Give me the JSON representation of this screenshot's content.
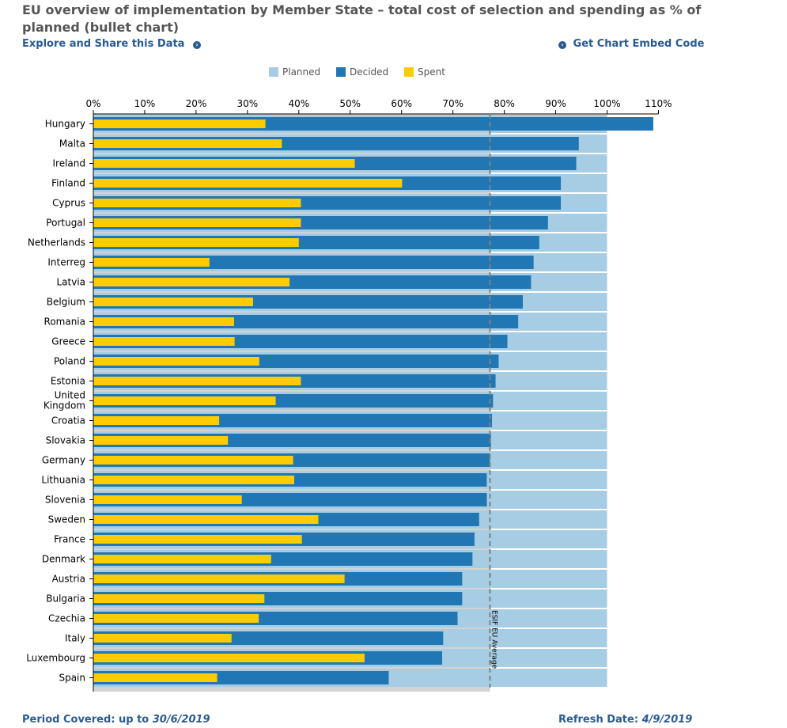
{
  "header": {
    "title_line1": "EU overview of implementation by Member State – total cost of selection and spending as % of",
    "title_line2": "planned (bullet chart)",
    "explore_link": "Explore and Share this Data",
    "embed_link": "Get Chart Embed Code",
    "explore_icon": "chevron-right-circle-icon",
    "embed_icon": "chevron-left-circle-icon"
  },
  "footer": {
    "period_label": "Period Covered: up to",
    "period_value": "30/6/2019",
    "refresh_label": "Refresh Date:",
    "refresh_value": "4/9/2019"
  },
  "colors": {
    "planned": "#a6cde3",
    "decided": "#2176b4",
    "spent": "#fdcc00",
    "eu_average_band": "#d3d3d3",
    "eu_average_line": "#808080",
    "link": "#2a5b91"
  },
  "chart_data": {
    "type": "bar",
    "orientation": "horizontal",
    "subtype": "bullet",
    "title": "EU overview of implementation by Member State – total cost of selection and spending as % of planned (bullet chart)",
    "legend": [
      "Planned",
      "Decided",
      "Spent"
    ],
    "legend_position": "top",
    "xlim": [
      0,
      110
    ],
    "xticks": [
      "0%",
      "10%",
      "20%",
      "30%",
      "40%",
      "50%",
      "60%",
      "70%",
      "80%",
      "90%",
      "100%",
      "110%"
    ],
    "reference_line": {
      "label": "ESIF EU Average",
      "value": 77.2
    },
    "categories": [
      "Hungary",
      "Malta",
      "Ireland",
      "Finland",
      "Cyprus",
      "Portugal",
      "Netherlands",
      "Interreg",
      "Latvia",
      "Belgium",
      "Romania",
      "Greece",
      "Poland",
      "Estonia",
      "United Kingdom",
      "Croatia",
      "Slovakia",
      "Germany",
      "Lithuania",
      "Slovenia",
      "Sweden",
      "France",
      "Denmark",
      "Austria",
      "Bulgaria",
      "Czechia",
      "Italy",
      "Luxembourg",
      "Spain"
    ],
    "category_label_lines": [
      [
        "Hungary"
      ],
      [
        "Malta"
      ],
      [
        "Ireland"
      ],
      [
        "Finland"
      ],
      [
        "Cyprus"
      ],
      [
        "Portugal"
      ],
      [
        "Netherlands"
      ],
      [
        "Interreg"
      ],
      [
        "Latvia"
      ],
      [
        "Belgium"
      ],
      [
        "Romania"
      ],
      [
        "Greece"
      ],
      [
        "Poland"
      ],
      [
        "Estonia"
      ],
      [
        "United",
        "Kingdom"
      ],
      [
        "Croatia"
      ],
      [
        "Slovakia"
      ],
      [
        "Germany"
      ],
      [
        "Lithuania"
      ],
      [
        "Slovenia"
      ],
      [
        "Sweden"
      ],
      [
        "France"
      ],
      [
        "Denmark"
      ],
      [
        "Austria"
      ],
      [
        "Bulgaria"
      ],
      [
        "Czechia"
      ],
      [
        "Italy"
      ],
      [
        "Luxembourg"
      ],
      [
        "Spain"
      ]
    ],
    "series": [
      {
        "name": "Planned",
        "values": [
          100,
          100,
          100,
          100,
          100,
          100,
          100,
          100,
          100,
          100,
          100,
          100,
          100,
          100,
          100,
          100,
          100,
          100,
          100,
          100,
          100,
          100,
          100,
          100,
          100,
          100,
          100,
          100,
          100
        ]
      },
      {
        "name": "Decided",
        "values": [
          109,
          94.5,
          94,
          91,
          91,
          88.5,
          86.8,
          85.7,
          85.2,
          83.6,
          82.7,
          80.6,
          78.9,
          78.3,
          77.8,
          77.6,
          77.4,
          77.2,
          76.6,
          76.6,
          75.1,
          74.2,
          73.8,
          71.8,
          71.8,
          70.9,
          68.1,
          67.9,
          57.5
        ]
      },
      {
        "name": "Spent",
        "values": [
          33.5,
          36.7,
          50.9,
          60.1,
          40.4,
          40.4,
          40,
          22.6,
          38.2,
          31.1,
          27.4,
          27.5,
          32.3,
          40.4,
          35.5,
          24.5,
          26.2,
          38.9,
          39.1,
          28.9,
          43.8,
          40.6,
          34.6,
          48.9,
          33.3,
          32.2,
          26.9,
          52.8,
          24.1
        ]
      }
    ]
  }
}
